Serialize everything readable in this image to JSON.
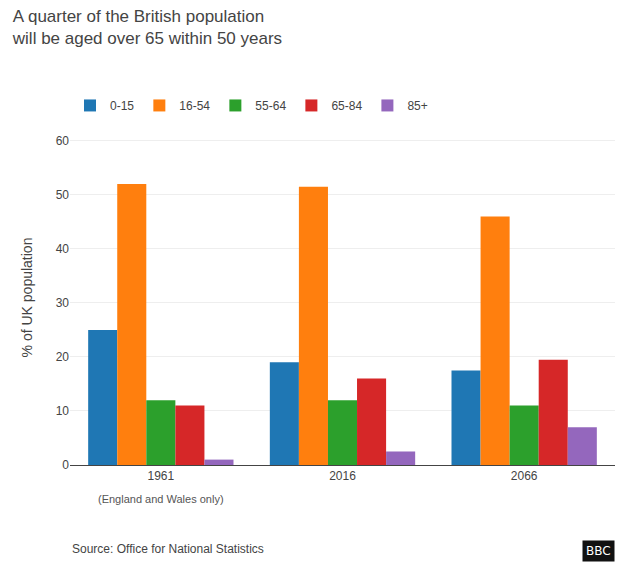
{
  "chart_data": {
    "type": "bar",
    "title": "A quarter of the British population\nwill be aged over 65 within 50 years",
    "ylabel": "% of UK population",
    "categories": [
      "1961",
      "2016",
      "2066"
    ],
    "series": [
      {
        "name": "0-15",
        "values": [
          25.0,
          19.0,
          17.5
        ]
      },
      {
        "name": "16-54",
        "values": [
          52.0,
          51.5,
          46.0
        ]
      },
      {
        "name": "55-64",
        "values": [
          12.0,
          12.0,
          11.0
        ]
      },
      {
        "name": "65-84",
        "values": [
          11.0,
          16.0,
          19.5
        ]
      },
      {
        "name": "85+",
        "values": [
          1.0,
          2.5,
          7.0
        ]
      }
    ],
    "ylim": [
      0,
      62
    ],
    "yticks": [
      0,
      10,
      20,
      30,
      40,
      50,
      60
    ],
    "grid": true,
    "legend": "top left",
    "annotations": [
      {
        "text": "(England and Wales only)",
        "category": "1961"
      },
      {
        "text": "Source: Office for National Statistics"
      },
      {
        "text": "BBC"
      }
    ]
  }
}
